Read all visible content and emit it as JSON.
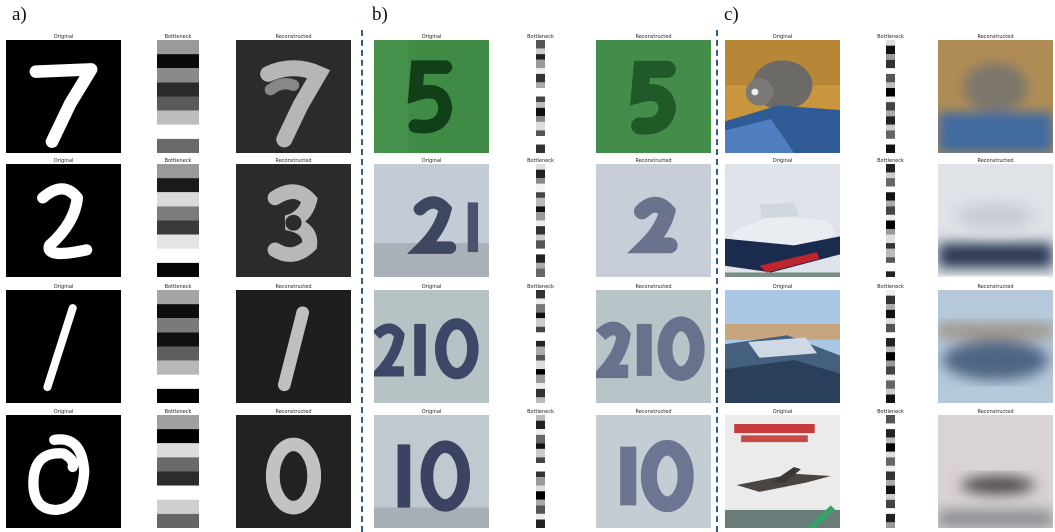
{
  "panels": [
    {
      "label": "a)",
      "digits": [
        "7",
        "2",
        "1",
        "0"
      ]
    },
    {
      "label": "b)",
      "digits": [
        "5",
        "21",
        "210",
        "10"
      ]
    },
    {
      "label": "c)",
      "scenes": [
        "cat",
        "ship",
        "ship",
        "airplane"
      ]
    }
  ],
  "captions": {
    "original": "Original",
    "bottleneck": "Bottleneck",
    "reconstructed": "Reconstructed"
  },
  "colors": {
    "divider": "#2f5f86",
    "mnist_bg": "#000000",
    "mnist_recon_bg": "#2a2a2a",
    "svhn_green": "#3f8a45",
    "svhn_blue": "#b7c1cc"
  }
}
